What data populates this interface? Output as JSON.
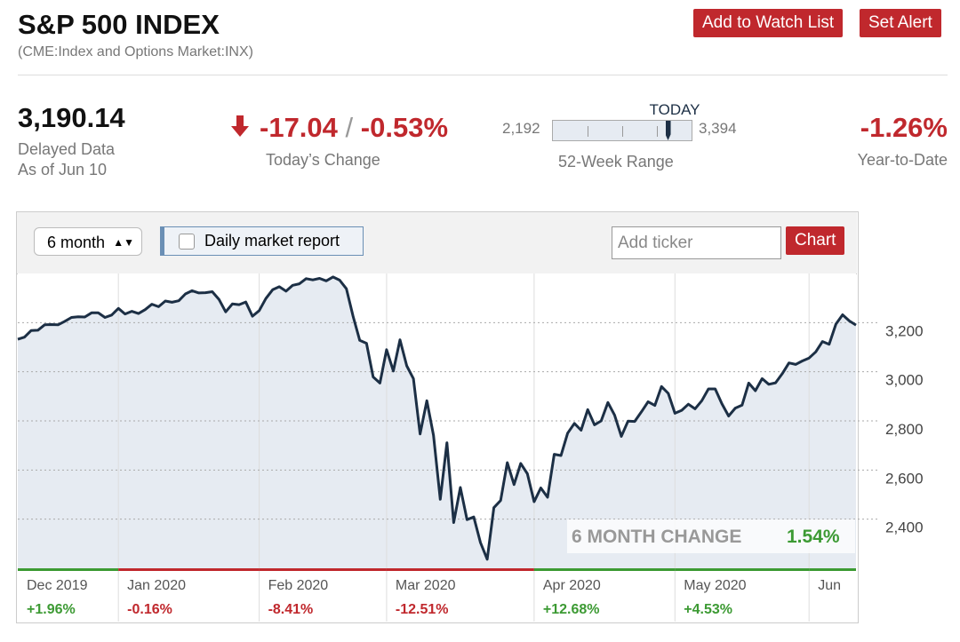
{
  "header": {
    "title": "S&P 500 INDEX",
    "subtitle": "(CME:Index and Options Market:INX)",
    "buttons": [
      "Add to Watch List",
      "Set Alert"
    ]
  },
  "quote": {
    "price": {
      "value": 3190.14,
      "label": "3,190.14"
    },
    "delay_note": "Delayed Data",
    "as_of": "As of Jun 10",
    "change": -17.04,
    "separator": "/",
    "change_pct": {
      "value": -0.53,
      "label": "-0.53%"
    },
    "change_caption": "Today’s Change",
    "range_low": {
      "value": 2192,
      "label": "2,192"
    },
    "range_high": {
      "value": 3394,
      "label": "3,394"
    },
    "range_marker": "TODAY",
    "range_caption": "52-Week Range",
    "ytd": {
      "value": -1.26,
      "label": "-1.26%"
    },
    "ytd_caption": "Year-to-Date"
  },
  "controls": {
    "period": "6 month",
    "checkbox": "Daily market report",
    "ticker_placeholder": "Add ticker",
    "chart_button": "Chart"
  },
  "chart_data": {
    "type": "line",
    "color": "#1c2f45",
    "fill": "#e6ebf2",
    "grid": true,
    "categories": [
      "Dec 2019",
      null,
      null,
      null,
      null,
      null,
      null,
      null,
      null,
      null,
      null,
      null,
      null,
      null,
      null,
      "Jan 2020",
      null,
      null,
      null,
      null,
      null,
      null,
      null,
      null,
      null,
      null,
      null,
      null,
      null,
      null,
      null,
      null,
      null,
      null,
      null,
      null,
      "Feb 2020",
      null,
      null,
      null,
      null,
      null,
      null,
      null,
      null,
      null,
      null,
      null,
      null,
      null,
      null,
      null,
      null,
      null,
      null,
      "Mar 2020",
      null,
      null,
      null,
      null,
      null,
      null,
      null,
      null,
      null,
      null,
      null,
      null,
      null,
      null,
      null,
      null,
      null,
      null,
      null,
      null,
      null,
      "Apr 2020",
      null,
      null,
      null,
      null,
      null,
      null,
      null,
      null,
      null,
      null,
      null,
      null,
      null,
      null,
      null,
      null,
      null,
      null,
      null,
      null,
      "May 2020",
      null,
      null,
      null,
      null,
      null,
      null,
      null,
      null,
      null,
      null,
      null,
      null,
      null,
      null,
      null,
      null,
      null,
      null,
      null,
      "Jun",
      null,
      null,
      null,
      null,
      null,
      null,
      null
    ],
    "values": [
      3132,
      3141,
      3168,
      3169,
      3191,
      3192,
      3191,
      3205,
      3221,
      3224,
      3223,
      3240,
      3240,
      3221,
      3231,
      3258,
      3235,
      3246,
      3237,
      3253,
      3275,
      3265,
      3288,
      3283,
      3289,
      3317,
      3330,
      3321,
      3322,
      3326,
      3295,
      3244,
      3276,
      3273,
      3284,
      3226,
      3249,
      3298,
      3334,
      3346,
      3328,
      3352,
      3358,
      3379,
      3374,
      3380,
      3370,
      3386,
      3373,
      3338,
      3226,
      3128,
      3116,
      2979,
      2954,
      3090,
      3003,
      3130,
      3024,
      2972,
      2747,
      2882,
      2741,
      2481,
      2711,
      2386,
      2529,
      2398,
      2409,
      2305,
      2237,
      2447,
      2476,
      2630,
      2541,
      2627,
      2585,
      2471,
      2527,
      2489,
      2664,
      2659,
      2750,
      2790,
      2762,
      2846,
      2784,
      2800,
      2875,
      2824,
      2737,
      2799,
      2798,
      2837,
      2878,
      2863,
      2940,
      2912,
      2831,
      2843,
      2868,
      2849,
      2882,
      2930,
      2930,
      2870,
      2820,
      2852,
      2864,
      2954,
      2923,
      2972,
      2949,
      2955,
      2992,
      3036,
      3030,
      3044,
      3056,
      3081,
      3123,
      3112,
      3194,
      3232,
      3207,
      3190.14
    ],
    "ylim": [
      2200,
      3400
    ],
    "yticks": [
      {
        "value": 2400,
        "label": "2,400"
      },
      {
        "value": 2600,
        "label": "2,600"
      },
      {
        "value": 2800,
        "label": "2,800"
      },
      {
        "value": 3000,
        "label": "3,000"
      },
      {
        "value": 3200,
        "label": "3,200"
      }
    ],
    "period_changes": {
      "values": [
        1.96,
        -0.16,
        -8.41,
        -12.51,
        12.68,
        4.53
      ],
      "value_labels": [
        "+1.96%",
        "-0.16%",
        "-8.41%",
        "-12.51%",
        "+12.68%",
        "+4.53%"
      ]
    },
    "total_change_caption": "6 MONTH CHANGE",
    "total_change": {
      "value": 1.54,
      "label": "1.54%"
    }
  }
}
